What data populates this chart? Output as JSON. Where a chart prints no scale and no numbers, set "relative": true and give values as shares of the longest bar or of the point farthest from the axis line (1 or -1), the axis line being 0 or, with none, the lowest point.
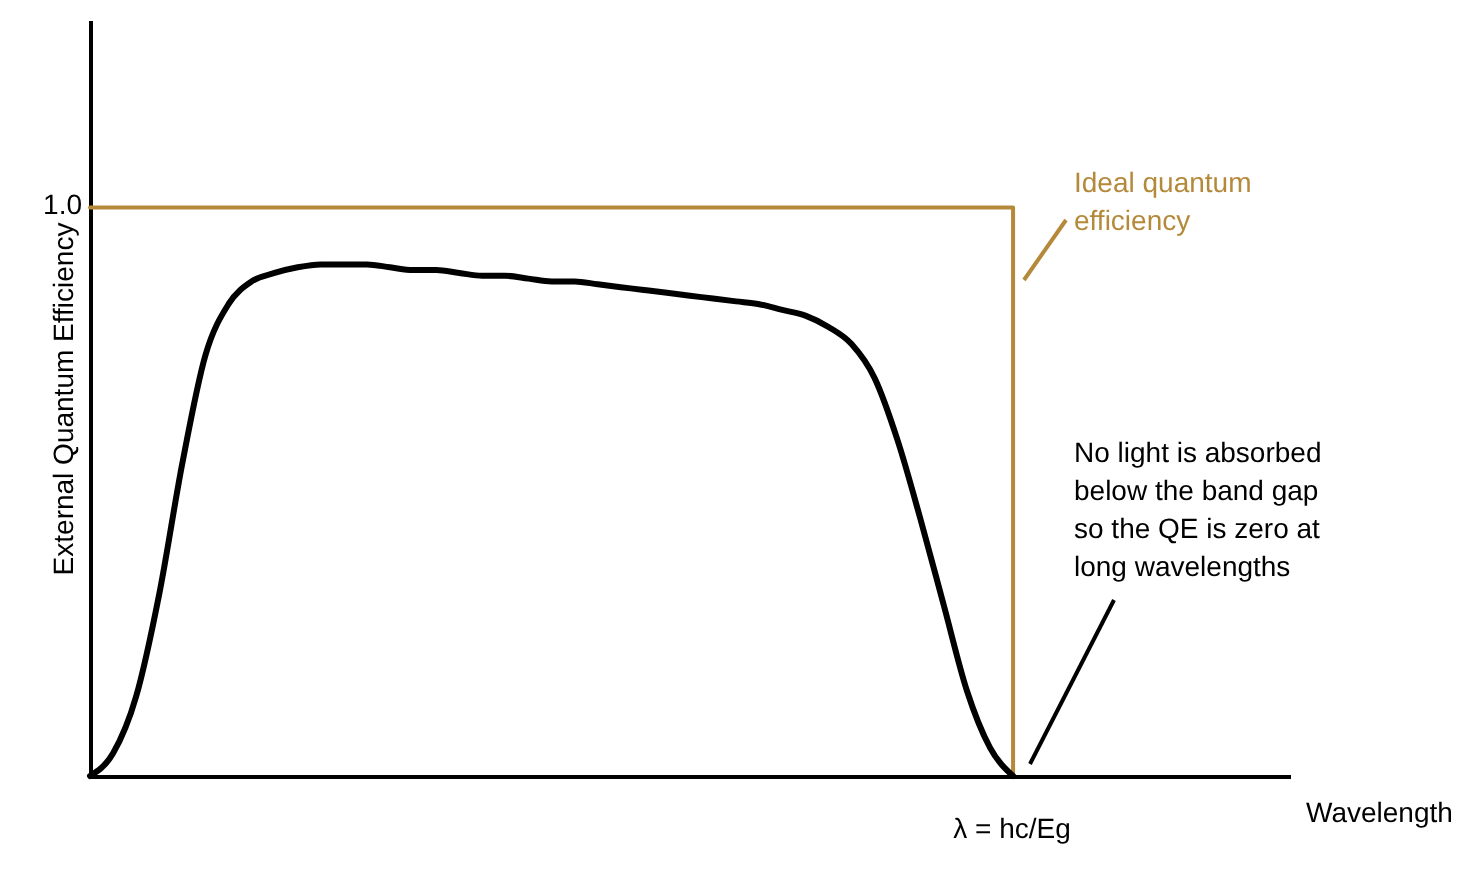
{
  "chart_data": {
    "type": "line",
    "relative": true,
    "ylabel": "External Quantum Efficiency",
    "categories": [
      null,
      null,
      null,
      null,
      null,
      null,
      null,
      null,
      null,
      null,
      null,
      null,
      null,
      null,
      null,
      null,
      null,
      null,
      null,
      null,
      null,
      null,
      null,
      null,
      null,
      null,
      null,
      null,
      null,
      null,
      null,
      null,
      null,
      null,
      null,
      null,
      null,
      null,
      null,
      null,
      null
    ],
    "series": [
      {
        "type": "step",
        "color": "#b5893a",
        "values": [
          1,
          1,
          1,
          1,
          1,
          1,
          1,
          1,
          1,
          1,
          1,
          1,
          1,
          1,
          1,
          1,
          1,
          1,
          1,
          1,
          1,
          1,
          1,
          1,
          1,
          1,
          1,
          1,
          1,
          1,
          1,
          1,
          1,
          1,
          1,
          1,
          1,
          1,
          1,
          1,
          0
        ]
      },
      {
        "color": "#000000",
        "values": [
          0,
          0.04,
          0.14,
          0.32,
          0.55,
          0.74,
          0.83,
          0.87,
          0.885,
          0.895,
          0.9,
          0.9,
          0.9,
          0.895,
          0.89,
          0.89,
          0.885,
          0.88,
          0.88,
          0.875,
          0.87,
          0.87,
          0.865,
          0.86,
          0.855,
          0.85,
          0.845,
          0.84,
          0.835,
          0.83,
          0.82,
          0.81,
          0.79,
          0.76,
          0.7,
          0.59,
          0.45,
          0.3,
          0.15,
          0.05,
          0
        ]
      }
    ],
    "annotations": [
      "1.0",
      "Ideal quantum efficiency",
      "No light  is absorbed below the band gap so the QE is zero at long wavelengths",
      "λ = hc/Eg",
      "Wavelength"
    ]
  }
}
